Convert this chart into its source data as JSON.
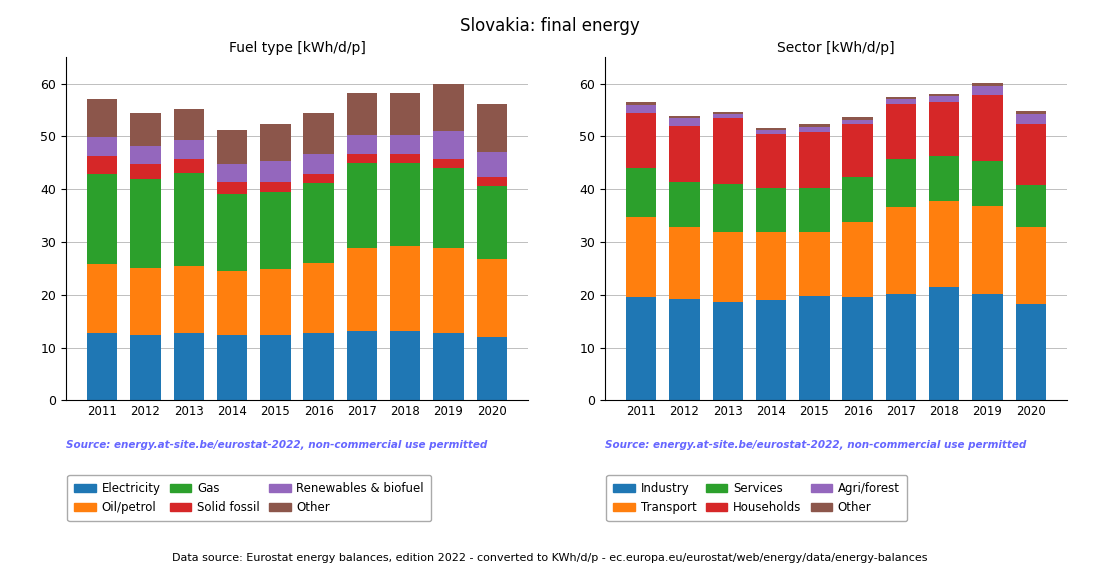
{
  "years": [
    2011,
    2012,
    2013,
    2014,
    2015,
    2016,
    2017,
    2018,
    2019,
    2020
  ],
  "title": "Slovakia: final energy",
  "footnote": "Source: energy.at-site.be/eurostat-2022, non-commercial use permitted",
  "bottom_note": "Data source: Eurostat energy balances, edition 2022 - converted to KWh/d/p - ec.europa.eu/eurostat/web/energy/data/energy-balances",
  "fuel_title": "Fuel type [kWh/d/p]",
  "fuel_series": {
    "Electricity": [
      12.7,
      12.3,
      12.8,
      12.4,
      12.4,
      12.7,
      13.1,
      13.2,
      12.8,
      12.1
    ],
    "Oil/petrol": [
      13.1,
      12.7,
      12.6,
      12.1,
      12.5,
      13.3,
      15.7,
      16.0,
      16.1,
      14.7
    ],
    "Gas": [
      17.0,
      16.9,
      17.6,
      14.6,
      14.6,
      15.2,
      16.1,
      15.7,
      15.1,
      13.9
    ],
    "Solid fossil": [
      3.5,
      2.8,
      2.8,
      2.2,
      1.8,
      1.6,
      1.8,
      1.7,
      1.8,
      1.6
    ],
    "Renewables & biofuel": [
      3.5,
      3.5,
      3.6,
      3.5,
      4.0,
      3.9,
      3.5,
      3.7,
      5.3,
      4.8
    ],
    "Other": [
      7.3,
      6.3,
      5.8,
      6.5,
      7.0,
      7.7,
      8.0,
      8.0,
      8.9,
      9.0
    ]
  },
  "fuel_colors": {
    "Electricity": "#1f77b4",
    "Oil/petrol": "#ff7f0e",
    "Gas": "#2ca02c",
    "Solid fossil": "#d62728",
    "Renewables & biofuel": "#9467bd",
    "Other": "#8c564b"
  },
  "sector_title": "Sector [kWh/d/p]",
  "sector_series": {
    "Industry": [
      19.5,
      19.2,
      18.6,
      19.1,
      19.7,
      19.6,
      20.2,
      21.4,
      20.2,
      18.3
    ],
    "Transport": [
      15.3,
      13.7,
      13.3,
      12.8,
      12.2,
      14.1,
      16.5,
      16.4,
      16.6,
      14.6
    ],
    "Services": [
      9.2,
      8.5,
      9.0,
      8.3,
      8.3,
      8.6,
      9.0,
      8.5,
      8.5,
      7.9
    ],
    "Households": [
      10.4,
      10.5,
      12.5,
      10.2,
      10.7,
      10.0,
      10.5,
      10.3,
      12.5,
      11.6
    ],
    "Agri/forest": [
      1.6,
      1.6,
      0.8,
      0.8,
      0.9,
      0.9,
      0.9,
      1.0,
      1.8,
      1.8
    ],
    "Other": [
      0.6,
      0.4,
      0.4,
      0.4,
      0.5,
      0.4,
      0.4,
      0.4,
      0.5,
      0.7
    ]
  },
  "sector_colors": {
    "Industry": "#1f77b4",
    "Transport": "#ff7f0e",
    "Services": "#2ca02c",
    "Households": "#d62728",
    "Agri/forest": "#9467bd",
    "Other": "#8c564b"
  },
  "footnote_color": "#6666ff",
  "bottom_note_color": "#000000",
  "ylim": [
    0,
    65
  ],
  "yticks": [
    0,
    10,
    20,
    30,
    40,
    50,
    60
  ]
}
